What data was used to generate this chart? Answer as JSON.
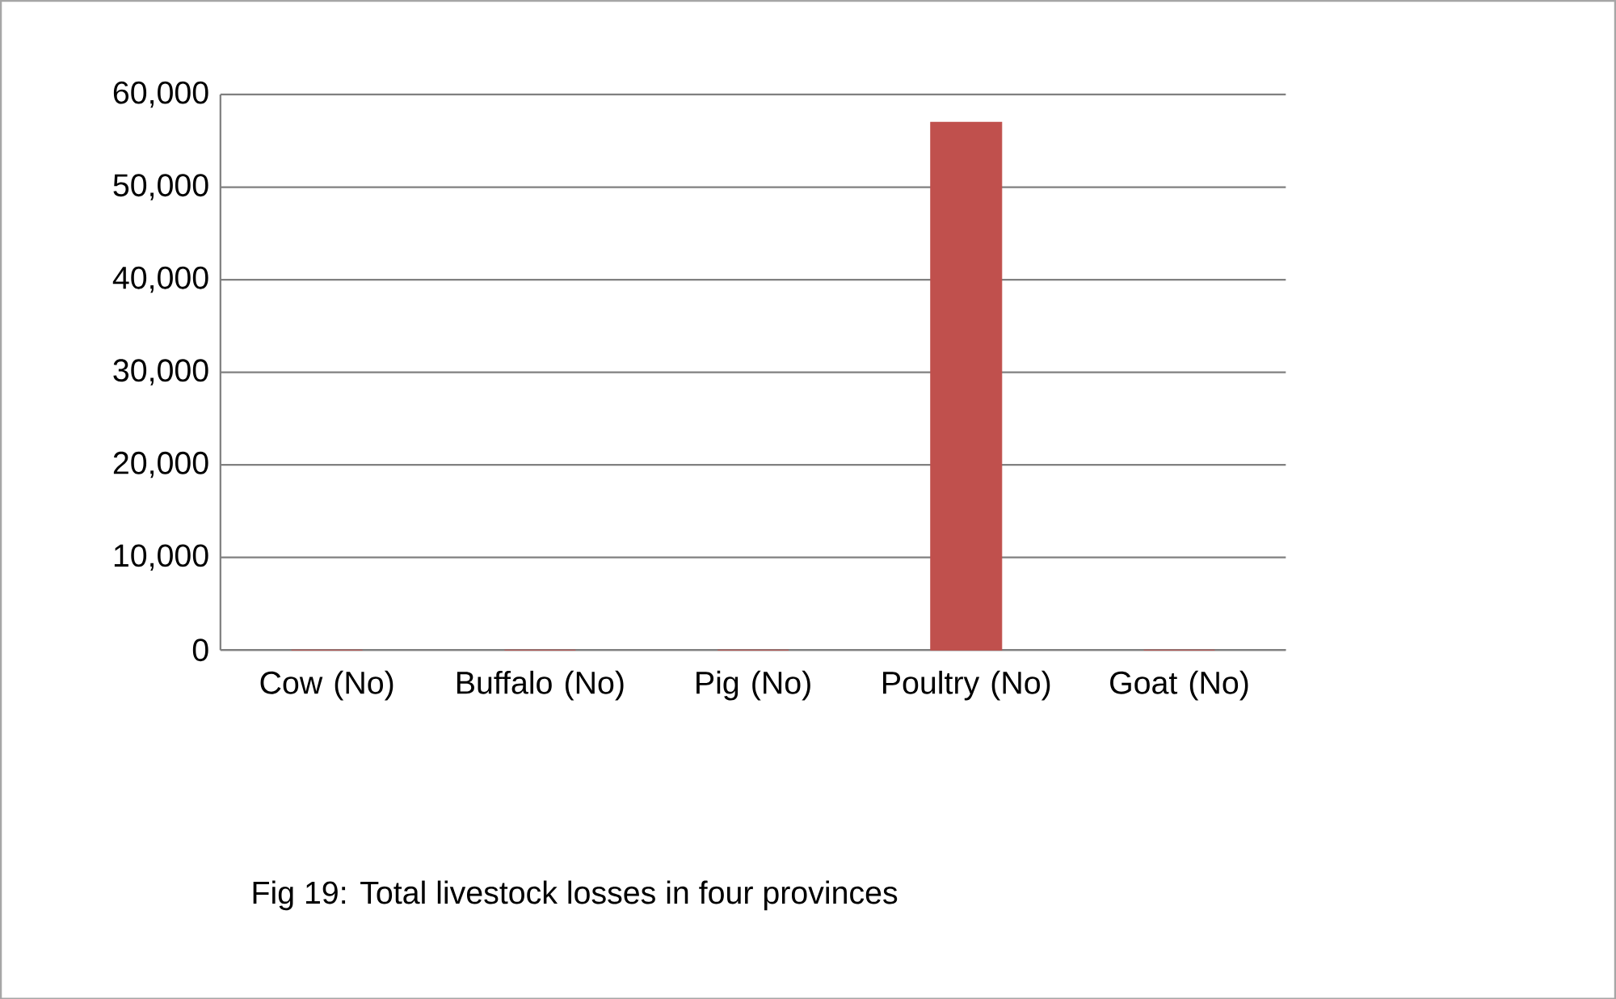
{
  "chart_data": {
    "type": "bar",
    "title": "Fig 19: Total livestock losses in four provinces",
    "categories": [
      "Cow (No)",
      "Buffalo (No)",
      "Pig (No)",
      "Poultry (No)",
      "Goat (No)"
    ],
    "values": [
      0,
      0,
      0,
      57000,
      0
    ],
    "color": "#c0504d",
    "ylim": [
      0,
      60000
    ],
    "yticks": [
      0,
      {
        "value": 10000,
        "label": "10,000"
      },
      {
        "value": 20000,
        "label": "20,000"
      },
      {
        "value": 30000,
        "label": "30,000"
      },
      {
        "value": 40000,
        "label": "40,000"
      },
      {
        "value": 50000,
        "label": "50,000"
      },
      {
        "value": 60000,
        "label": "60,000"
      }
    ],
    "grid": true
  }
}
